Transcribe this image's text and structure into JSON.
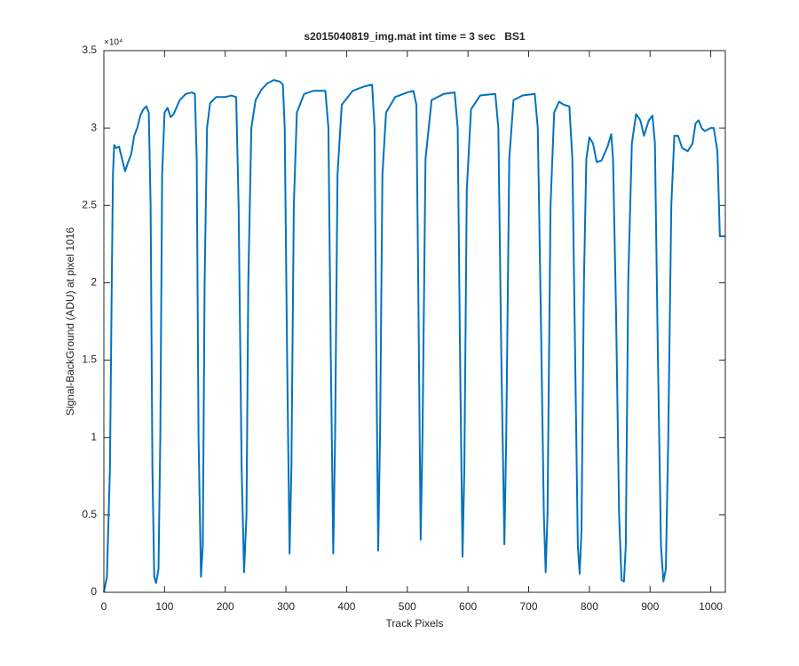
{
  "chart_data": {
    "type": "line",
    "title": "s2015040819_img.mat int time = 3 sec   BS1",
    "xlabel": "Track Pixels",
    "ylabel": "Signal-BackGround (ADU) at pixel 1016",
    "y_exponent": "×10⁴",
    "xlim": [
      0,
      1024
    ],
    "ylim": [
      0,
      35000
    ],
    "xticks": [
      0,
      100,
      200,
      300,
      400,
      500,
      600,
      700,
      800,
      900,
      1000
    ],
    "yticks": [
      0,
      {
        "value": 5000,
        "label": "0.5"
      },
      {
        "value": 10000,
        "label": "1"
      },
      {
        "value": 15000,
        "label": "1.5"
      },
      {
        "value": 20000,
        "label": "2"
      },
      {
        "value": 25000,
        "label": "2.5"
      },
      {
        "value": 30000,
        "label": "3"
      },
      {
        "value": 35000,
        "label": "3.5"
      }
    ],
    "color": "#0072bd",
    "x": [
      0,
      5,
      10,
      13,
      15,
      17,
      20,
      25,
      30,
      35,
      40,
      45,
      50,
      55,
      60,
      65,
      70,
      74,
      77,
      80,
      83,
      86,
      90,
      93,
      96,
      100,
      105,
      110,
      115,
      125,
      135,
      145,
      150,
      153,
      156,
      160,
      163,
      166,
      170,
      175,
      185,
      200,
      210,
      218,
      222,
      227,
      231,
      235,
      238,
      243,
      250,
      260,
      270,
      280,
      290,
      295,
      298,
      302,
      306,
      309,
      313,
      318,
      330,
      345,
      365,
      370,
      374,
      378,
      381,
      385,
      392,
      410,
      430,
      442,
      446,
      449,
      452,
      455,
      459,
      465,
      480,
      500,
      510,
      515,
      518,
      522,
      525,
      530,
      540,
      560,
      578,
      583,
      587,
      591,
      594,
      598,
      605,
      620,
      645,
      650,
      655,
      660,
      663,
      668,
      675,
      690,
      710,
      715,
      720,
      725,
      728,
      731,
      736,
      742,
      750,
      758,
      767,
      772,
      777,
      781,
      784,
      787,
      791,
      795,
      800,
      806,
      812,
      820,
      830,
      836,
      839,
      844,
      849,
      853,
      857,
      860,
      864,
      870,
      877,
      884,
      890,
      898,
      904,
      908,
      913,
      918,
      922,
      926,
      930,
      935,
      940,
      946,
      953,
      962,
      970,
      975,
      980,
      985,
      990,
      1000,
      1005,
      1011,
      1015,
      1024
    ],
    "values": [
      0,
      1000,
      8000,
      20000,
      27000,
      28900,
      28700,
      28800,
      28000,
      27200,
      27800,
      28300,
      29500,
      30000,
      30800,
      31200,
      31400,
      31000,
      25000,
      8000,
      1000,
      600,
      1500,
      10000,
      27000,
      31000,
      31300,
      30700,
      30900,
      31800,
      32200,
      32300,
      32200,
      28000,
      10000,
      1000,
      3000,
      20000,
      30000,
      31600,
      32000,
      32000,
      32100,
      32000,
      25000,
      8000,
      1300,
      5000,
      20000,
      30000,
      31800,
      32500,
      32900,
      33100,
      33000,
      32800,
      30000,
      15000,
      2500,
      8000,
      25000,
      31000,
      32200,
      32400,
      32400,
      30000,
      15000,
      2500,
      10000,
      27000,
      31500,
      32400,
      32700,
      32800,
      30000,
      15000,
      2700,
      10000,
      27000,
      31000,
      32000,
      32300,
      32400,
      31500,
      20000,
      3400,
      10000,
      28000,
      31800,
      32200,
      32300,
      30000,
      15000,
      2300,
      8000,
      26000,
      31200,
      32100,
      32200,
      30000,
      15000,
      3100,
      10000,
      28000,
      31800,
      32100,
      32200,
      30000,
      18000,
      5000,
      1300,
      5000,
      25000,
      31000,
      31700,
      31500,
      31400,
      28000,
      14000,
      3000,
      1200,
      4000,
      20000,
      28000,
      29400,
      29000,
      27800,
      27900,
      28800,
      29600,
      28000,
      18000,
      5000,
      800,
      700,
      3000,
      20000,
      29000,
      30900,
      30500,
      29500,
      30500,
      30800,
      29000,
      15000,
      3000,
      700,
      1500,
      10000,
      25000,
      29500,
      29500,
      28700,
      28500,
      29000,
      30300,
      30500,
      30000,
      29800,
      30000,
      30000,
      28500,
      23000,
      23000
    ]
  }
}
